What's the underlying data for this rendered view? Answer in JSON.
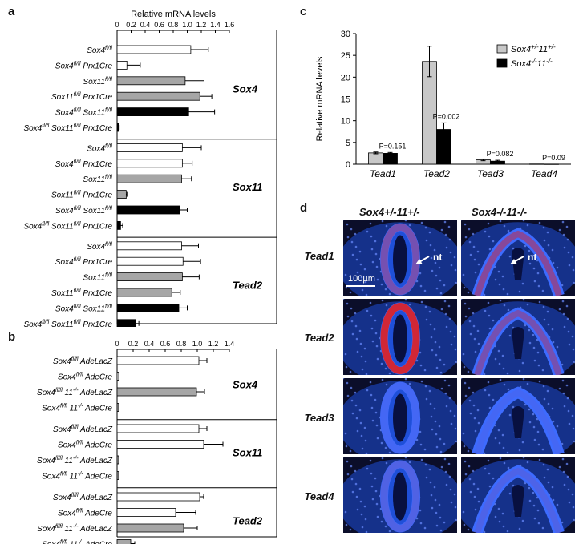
{
  "panel_letters": {
    "a": "a",
    "b": "b",
    "c": "c",
    "d": "d"
  },
  "colors": {
    "white": "#ffffff",
    "gray": "#a6a6a6",
    "black": "#000000",
    "light": "#c8c8c8",
    "dapi": "#1f4fd8",
    "signal": "#e02020"
  },
  "chart_data": [
    {
      "id": "a",
      "type": "bar",
      "orientation": "horizontal",
      "title": "Relative mRNA levels",
      "xlim": [
        0,
        1.6
      ],
      "ticks": [
        "0",
        "0.2",
        "0.4",
        "0.6",
        "0.8",
        "1.0",
        "1.2",
        "1.4",
        "1.6"
      ],
      "groups": [
        {
          "name": "Sox4",
          "bars": [
            {
              "label": "Sox4fl/fl",
              "value": 1.05,
              "err": 0.25,
              "fill": "white"
            },
            {
              "label": "Sox4fl/fl Prx1Cre",
              "value": 0.14,
              "err": 0.19,
              "fill": "white"
            },
            {
              "label": "Sox11fl/fl",
              "value": 0.97,
              "err": 0.27,
              "fill": "gray"
            },
            {
              "label": "Sox11fl/fl Prx1Cre",
              "value": 1.18,
              "err": 0.17,
              "fill": "gray"
            },
            {
              "label": "Sox4fl/fl Sox11fl/fl",
              "value": 1.02,
              "err": 0.37,
              "fill": "black"
            },
            {
              "label": "Sox4fl/fl Sox11fl/fl Prx1Cre",
              "value": 0.02,
              "err": 0.01,
              "fill": "black"
            }
          ]
        },
        {
          "name": "Sox11",
          "bars": [
            {
              "label": "Sox4fl/fl",
              "value": 0.93,
              "err": 0.27,
              "fill": "white"
            },
            {
              "label": "Sox4fl/fl Prx1Cre",
              "value": 0.93,
              "err": 0.14,
              "fill": "white"
            },
            {
              "label": "Sox11fl/fl",
              "value": 0.92,
              "err": 0.14,
              "fill": "gray"
            },
            {
              "label": "Sox11fl/fl Prx1Cre",
              "value": 0.13,
              "err": 0.01,
              "fill": "gray"
            },
            {
              "label": "Sox4fl/fl Sox11fl/fl",
              "value": 0.89,
              "err": 0.11,
              "fill": "black"
            },
            {
              "label": "Sox4fl/fl Sox11fl/fl Prx1Cre",
              "value": 0.05,
              "err": 0.03,
              "fill": "black"
            }
          ]
        },
        {
          "name": "Tead2",
          "bars": [
            {
              "label": "Sox4fl/fl",
              "value": 0.92,
              "err": 0.24,
              "fill": "white"
            },
            {
              "label": "Sox4fl/fl Prx1Cre",
              "value": 0.94,
              "err": 0.25,
              "fill": "white"
            },
            {
              "label": "Sox11fl/fl",
              "value": 0.93,
              "err": 0.24,
              "fill": "gray"
            },
            {
              "label": "Sox11fl/fl Prx1Cre",
              "value": 0.78,
              "err": 0.12,
              "fill": "gray"
            },
            {
              "label": "Sox4fl/fl Sox11fl/fl",
              "value": 0.88,
              "err": 0.12,
              "fill": "black"
            },
            {
              "label": "Sox4fl/fl Sox11fl/fl Prx1Cre",
              "value": 0.26,
              "err": 0.05,
              "fill": "black"
            }
          ]
        }
      ]
    },
    {
      "id": "b",
      "type": "bar",
      "orientation": "horizontal",
      "xlim": [
        0,
        1.4
      ],
      "ticks": [
        "0",
        "0.2",
        "0.4",
        "0.6",
        "0.8",
        "1.0",
        "1.2",
        "1.4"
      ],
      "groups": [
        {
          "name": "Sox4",
          "bars": [
            {
              "label": "Sox4fl/fl AdeLacZ",
              "value": 1.02,
              "err": 0.1,
              "fill": "white"
            },
            {
              "label": "Sox4fl/fl AdeCre",
              "value": 0.01,
              "err": 0,
              "fill": "white"
            },
            {
              "label": "Sox4fl/fl 11-/- AdeLacZ",
              "value": 0.99,
              "err": 0.1,
              "fill": "gray"
            },
            {
              "label": "Sox4fl/fl 11-/- AdeCre",
              "value": 0.01,
              "err": 0,
              "fill": "gray"
            }
          ]
        },
        {
          "name": "Sox11",
          "bars": [
            {
              "label": "Sox4fl/fl AdeLacZ",
              "value": 1.02,
              "err": 0.1,
              "fill": "white"
            },
            {
              "label": "Sox4fl/fl AdeCre",
              "value": 1.08,
              "err": 0.24,
              "fill": "white"
            },
            {
              "label": "Sox4fl/fl 11-/- AdeLacZ",
              "value": 0.01,
              "err": 0,
              "fill": "gray"
            },
            {
              "label": "Sox4fl/fl 11-/- AdeCre",
              "value": 0.01,
              "err": 0,
              "fill": "gray"
            }
          ]
        },
        {
          "name": "Tead2",
          "bars": [
            {
              "label": "Sox4fl/fl AdeLacZ",
              "value": 1.03,
              "err": 0.05,
              "fill": "white"
            },
            {
              "label": "Sox4fl/fl AdeCre",
              "value": 0.73,
              "err": 0.25,
              "fill": "white"
            },
            {
              "label": "Sox4fl/fl 11-/- AdeLacZ",
              "value": 0.83,
              "err": 0.17,
              "fill": "gray"
            },
            {
              "label": "Sox4fl/fl 11-/- AdeCre",
              "value": 0.17,
              "err": 0.05,
              "fill": "gray"
            }
          ]
        }
      ]
    },
    {
      "id": "c",
      "type": "bar",
      "orientation": "vertical",
      "ylabel": "Relative mRNA levels",
      "ylim": [
        0,
        30
      ],
      "yticks": [
        "0",
        "5",
        "10",
        "15",
        "20",
        "25",
        "30"
      ],
      "categories": [
        "Tead1",
        "Tead2",
        "Tead3",
        "Tead4"
      ],
      "series": [
        {
          "name": "Sox4+/-11+/-",
          "values": [
            2.6,
            23.6,
            1.0,
            0.05
          ],
          "err": [
            0.2,
            3.5,
            0.2,
            0
          ],
          "fill": "light"
        },
        {
          "name": "Sox4-/-11-/-",
          "values": [
            2.5,
            8.0,
            0.7,
            0.03
          ],
          "err": [
            0.2,
            1.5,
            0.2,
            0
          ],
          "fill": "black"
        }
      ],
      "pvalues": [
        "P=0.151",
        "P=0.002",
        "P=0.082",
        "P=0.09"
      ]
    }
  ],
  "panel_d": {
    "col_labels": [
      "Sox4+/-11+/-",
      "Sox4-/-11-/-"
    ],
    "row_labels": [
      "Tead1",
      "Tead2",
      "Tead3",
      "Tead4"
    ],
    "annotation": "nt",
    "scale_bar": "100µm"
  }
}
